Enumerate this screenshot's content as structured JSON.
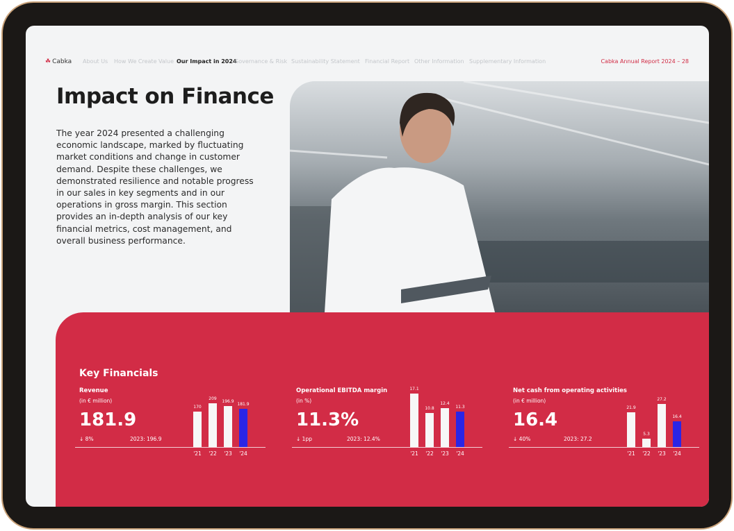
{
  "nav": {
    "logo": "Cabka",
    "items": [
      "About Us",
      "How We Create Value",
      "Our Impact in 2024",
      "Governance & Risk",
      "Sustainability Statement",
      "Financial Report",
      "Other Information",
      "Supplementary Information"
    ],
    "active_index": 2,
    "page_label": "Cabka Annual Report 2024 –  28"
  },
  "title": "Impact on Finance",
  "intro": "The year 2024 presented a challenging economic landscape, marked by fluctuating market conditions and change in customer demand. Despite these challenges, we demonstrated resilience and notable progress in our sales in key segments and in our operations in gross margin. This section provides an in-depth analysis of our key financial metrics, cost management, and overall business performance.",
  "colors": {
    "brand": "#d22c46",
    "highlight_bar": "#2b25e6"
  },
  "key_financials": {
    "heading": "Key Financials",
    "metrics": [
      {
        "title": "Revenue",
        "unit": "(in € million)",
        "value": "181.9",
        "change": "↓  8%",
        "prior": "2023: 196.9"
      },
      {
        "title": "Operational EBITDA margin",
        "unit": "(in %)",
        "value": "11.3%",
        "change": "↓  1pp",
        "prior": "2023: 12.4%"
      },
      {
        "title": "Net cash from operating activities",
        "unit": "(in € million)",
        "value": "16.4",
        "change": "↓  40%",
        "prior": "2023: 27.2"
      }
    ]
  },
  "chart_data": [
    {
      "type": "bar",
      "categories": [
        "'21",
        "'22",
        "'23",
        "'24"
      ],
      "values": [
        170,
        209,
        196.9,
        181.9
      ],
      "labels": [
        "170",
        "209",
        "196.9",
        "181.9"
      ]
    },
    {
      "type": "bar",
      "categories": [
        "'21",
        "'22",
        "'23",
        "'24"
      ],
      "values": [
        17.1,
        10.8,
        12.4,
        11.3
      ],
      "labels": [
        "17.1",
        "10.8",
        "12.4",
        "11.3"
      ]
    },
    {
      "type": "bar",
      "categories": [
        "'21",
        "'22",
        "'23",
        "'24"
      ],
      "values": [
        21.9,
        5.3,
        27.2,
        16.4
      ],
      "labels": [
        "21.9",
        "5.3",
        "27.2",
        "16.4"
      ]
    }
  ]
}
